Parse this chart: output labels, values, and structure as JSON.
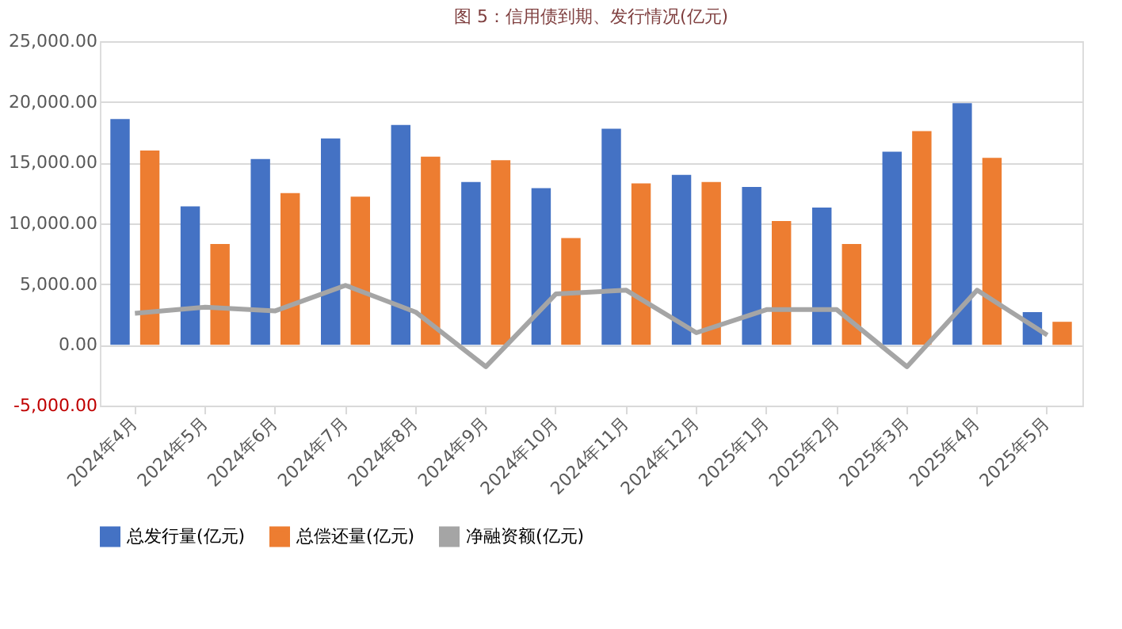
{
  "chart_data": {
    "type": "bar",
    "title": "图 5：信用债到期、发行情况(亿元)",
    "categories": [
      "2024年4月",
      "2024年5月",
      "2024年6月",
      "2024年7月",
      "2024年8月",
      "2024年9月",
      "2024年10月",
      "2024年11月",
      "2024年12月",
      "2025年1月",
      "2025年2月",
      "2025年3月",
      "2025年4月",
      "2025年5月"
    ],
    "series": [
      {
        "name": "总发行量(亿元)",
        "color": "#4472c4",
        "values": [
          18600,
          11400,
          15300,
          17000,
          18100,
          13400,
          12900,
          17800,
          14000,
          13000,
          11300,
          15900,
          19900,
          2700
        ]
      },
      {
        "name": "总偿还量(亿元)",
        "color": "#ed7d31",
        "values": [
          16000,
          8300,
          12500,
          12200,
          15500,
          15200,
          8800,
          13300,
          13400,
          10200,
          8300,
          17600,
          15400,
          1900
        ]
      },
      {
        "name": "净融资额(亿元)",
        "color": "#a5a5a5",
        "type": "line",
        "values": [
          2600,
          3100,
          2800,
          4900,
          2700,
          -1800,
          4200,
          4500,
          1000,
          2900,
          2900,
          -1800,
          4500,
          800
        ]
      }
    ],
    "ylim": [
      -5000,
      25000
    ],
    "yticks": [
      {
        "value": -5000,
        "label": "-5,000.00"
      },
      {
        "value": 0,
        "label": "0.00"
      },
      {
        "value": 5000,
        "label": "5,000.00"
      },
      {
        "value": 10000,
        "label": "10,000.00"
      },
      {
        "value": 15000,
        "label": "15,000.00"
      },
      {
        "value": 20000,
        "label": "20,000.00"
      },
      {
        "value": 25000,
        "label": "25,000.00"
      }
    ],
    "grid": "y",
    "legend": "bottom",
    "marker": "none",
    "line_style": "solid"
  }
}
